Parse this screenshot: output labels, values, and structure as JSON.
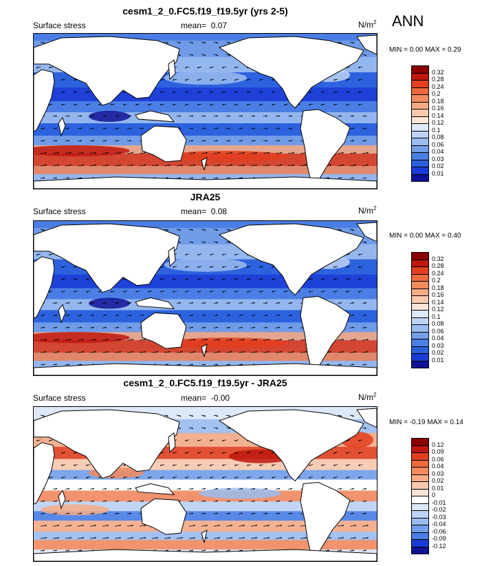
{
  "season": "ANN",
  "panels": [
    {
      "title": "cesm1_2_0.FC5.f19_f19.5yr (yrs 2-5)",
      "left_label": "Surface stress",
      "mean_label": "mean=",
      "mean_value": "0.07",
      "units_base": "N/m",
      "units_exp": "2",
      "range_text": "MIN =   0.00 MAX =   0.29",
      "colorbar": {
        "ticks": [
          "0.32",
          "0.28",
          "0.24",
          "0.2",
          "0.18",
          "0.16",
          "0.14",
          "0.12",
          "0.1",
          "0.08",
          "0.06",
          "0.04",
          "0.03",
          "0.02",
          "0.01"
        ],
        "colors": [
          "#8b0000",
          "#c0170f",
          "#e2401e",
          "#ee6a3c",
          "#f28a5e",
          "#f6ab86",
          "#f9c9ad",
          "#fce5d8",
          "#dde8f8",
          "#bed3f4",
          "#9cbcf0",
          "#739ee8",
          "#4a7ee4",
          "#2a5fdd",
          "#1a3bd6",
          "#101296"
        ]
      },
      "map": {
        "type": "global_surface_stress",
        "field": "model",
        "projection": "cylindrical_equidistant",
        "central_longitude": "180"
      }
    },
    {
      "title": "JRA25",
      "left_label": "Surface stress",
      "mean_label": "mean=",
      "mean_value": "0.08",
      "units_base": "N/m",
      "units_exp": "2",
      "range_text": "MIN =   0.00 MAX =   0.40",
      "colorbar": {
        "ticks": [
          "0.32",
          "0.28",
          "0.24",
          "0.2",
          "0.18",
          "0.16",
          "0.14",
          "0.12",
          "0.1",
          "0.08",
          "0.06",
          "0.04",
          "0.03",
          "0.02",
          "0.01"
        ],
        "colors": [
          "#8b0000",
          "#c0170f",
          "#e2401e",
          "#ee6a3c",
          "#f28a5e",
          "#f6ab86",
          "#f9c9ad",
          "#fce5d8",
          "#dde8f8",
          "#bed3f4",
          "#9cbcf0",
          "#739ee8",
          "#4a7ee4",
          "#2a5fdd",
          "#1a3bd6",
          "#101296"
        ]
      },
      "map": {
        "type": "global_surface_stress",
        "field": "observations",
        "projection": "cylindrical_equidistant",
        "central_longitude": "180"
      }
    },
    {
      "title": "cesm1_2_0.FC5.f19_f19.5yr - JRA25",
      "left_label": "Surface stress",
      "mean_label": "mean=",
      "mean_value": "-0.00",
      "units_base": "N/m",
      "units_exp": "2",
      "range_text": "MIN = -0.19 MAX =   0.14",
      "colorbar": {
        "ticks": [
          "0.12",
          "0.09",
          "0.06",
          "0.04",
          "0.03",
          "0.02",
          "0.01",
          "0",
          "-0.01",
          "-0.02",
          "-0.03",
          "-0.04",
          "-0.06",
          "-0.09",
          "-0.12"
        ],
        "colors": [
          "#8b0000",
          "#c0170f",
          "#e2401e",
          "#ee6a3c",
          "#f28a5e",
          "#f6ab86",
          "#f9c9ad",
          "#fce5d8",
          "#ffffff",
          "#dde8f8",
          "#bed3f4",
          "#9cbcf0",
          "#739ee8",
          "#4a7ee4",
          "#1a3bd6",
          "#101296"
        ]
      },
      "map": {
        "type": "global_surface_stress",
        "field": "difference",
        "projection": "cylindrical_equidistant",
        "central_longitude": "180"
      }
    }
  ]
}
